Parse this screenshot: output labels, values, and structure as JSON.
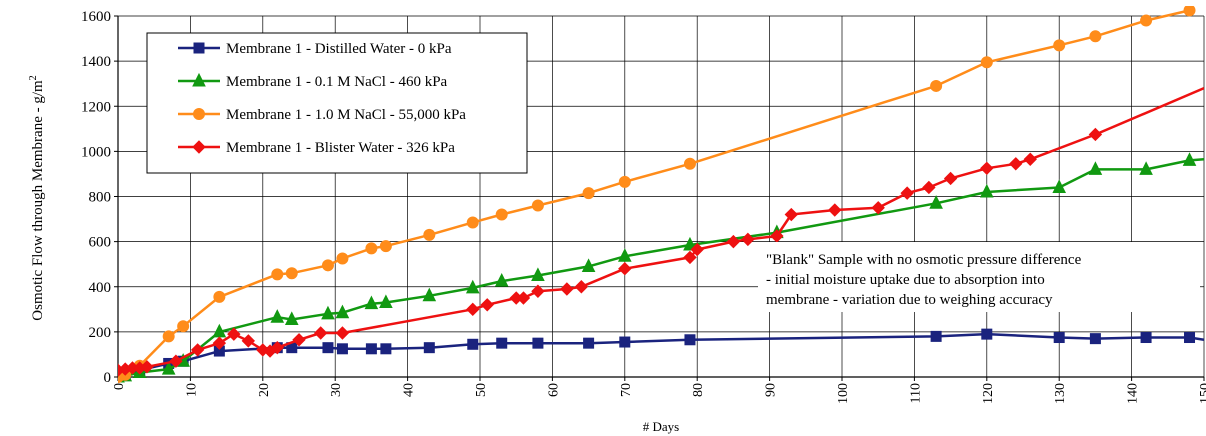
{
  "chart_data": {
    "type": "line",
    "title": "",
    "xlabel": "# Days",
    "ylabel": "Osmotic Flow through Membrane - g/m",
    "ylabel_sup": "2",
    "xlim": [
      0,
      150
    ],
    "ylim": [
      0,
      1600
    ],
    "xticks": [
      0,
      10,
      20,
      30,
      40,
      50,
      60,
      70,
      80,
      90,
      100,
      110,
      120,
      130,
      140,
      150
    ],
    "yticks": [
      0,
      200,
      400,
      600,
      800,
      1000,
      1200,
      1400,
      1600
    ],
    "grid": true,
    "legend_position": "top-left",
    "annotation": [
      "\"Blank\" Sample with no osmotic pressure difference",
      "- initial moisture uptake due to absorption into",
      "membrane - variation due to weighing accuracy"
    ],
    "series": [
      {
        "name": "Membrane 1 - Distilled Water - 0 kPa",
        "color": "#1a237e",
        "marker": "square",
        "x": [
          0,
          1,
          3,
          7,
          9,
          14,
          22,
          24,
          29,
          31,
          35,
          37,
          43,
          49,
          53,
          58,
          65,
          70,
          79,
          113,
          120,
          130,
          135,
          142,
          148,
          150
        ],
        "y": [
          5,
          15,
          30,
          60,
          70,
          115,
          130,
          130,
          130,
          125,
          125,
          125,
          130,
          145,
          150,
          150,
          150,
          155,
          165,
          180,
          190,
          175,
          170,
          175,
          175,
          165
        ]
      },
      {
        "name": "Membrane 1 - 0.1 M NaCl - 460 kPa",
        "color": "#119911",
        "marker": "triangle",
        "x": [
          0,
          1,
          3,
          7,
          9,
          14,
          22,
          24,
          29,
          31,
          35,
          37,
          43,
          49,
          53,
          58,
          65,
          70,
          79,
          91,
          113,
          120,
          130,
          135,
          142,
          148,
          150
        ],
        "y": [
          0,
          5,
          20,
          35,
          70,
          200,
          265,
          255,
          280,
          285,
          325,
          330,
          360,
          395,
          425,
          450,
          490,
          535,
          585,
          640,
          770,
          820,
          840,
          920,
          920,
          960,
          965
        ]
      },
      {
        "name": "Membrane 1 - 1.0 M NaCl - 55,000 kPa",
        "color": "#ff8c1a",
        "marker": "circle",
        "x": [
          0,
          1,
          3,
          7,
          9,
          14,
          22,
          24,
          29,
          31,
          35,
          37,
          43,
          49,
          53,
          58,
          65,
          70,
          79,
          113,
          120,
          130,
          135,
          142,
          148
        ],
        "y": [
          0,
          10,
          50,
          180,
          225,
          355,
          455,
          460,
          495,
          525,
          570,
          580,
          630,
          685,
          720,
          760,
          815,
          865,
          945,
          1290,
          1395,
          1470,
          1510,
          1580,
          1625
        ]
      },
      {
        "name": "Membrane 1 - Blister Water - 326 kPa",
        "color": "#ee1111",
        "marker": "diamond",
        "x": [
          0,
          1,
          2,
          3,
          4,
          8,
          11,
          14,
          16,
          18,
          20,
          21,
          22,
          25,
          28,
          31,
          49,
          51,
          55,
          56,
          58,
          62,
          64,
          70,
          79,
          80,
          85,
          87,
          91,
          93,
          99,
          105,
          109,
          112,
          115,
          120,
          124,
          126,
          135,
          150
        ],
        "y": [
          30,
          35,
          40,
          40,
          45,
          70,
          120,
          150,
          190,
          160,
          120,
          115,
          130,
          165,
          195,
          195,
          300,
          320,
          350,
          350,
          380,
          390,
          400,
          480,
          530,
          565,
          600,
          610,
          625,
          720,
          740,
          750,
          815,
          840,
          880,
          925,
          945,
          965,
          1075,
          1280
        ]
      }
    ]
  }
}
